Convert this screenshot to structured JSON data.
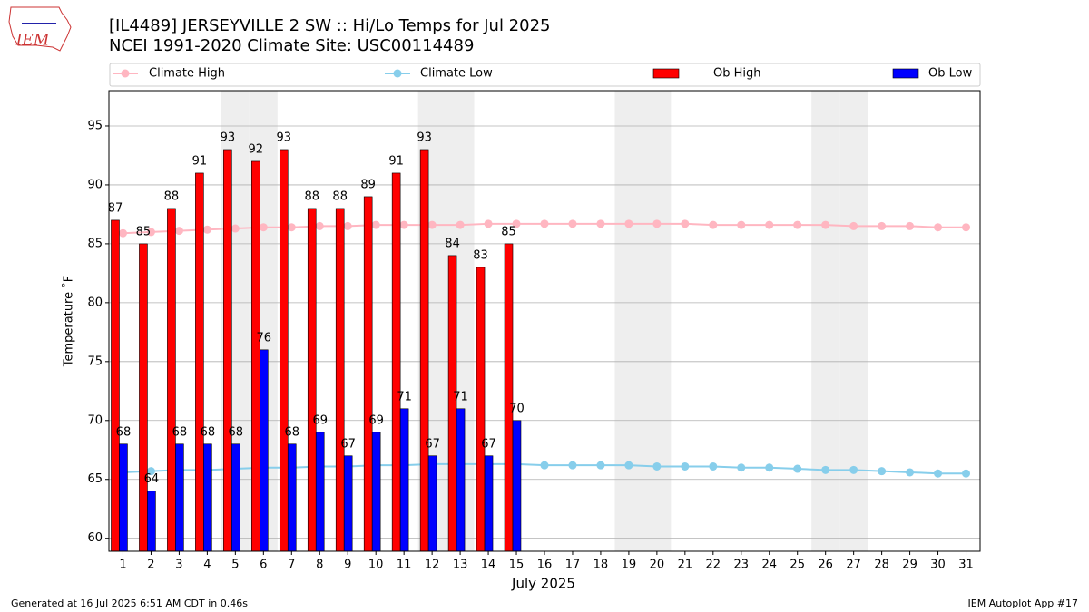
{
  "chart_data": {
    "type": "bar",
    "title": "[IL4489] JERSEYVILLE 2 SW :: Hi/Lo Temps for Jul 2025",
    "subtitle": "NCEI 1991-2020 Climate Site: USC00114489",
    "logo_text": "IEM",
    "x_label": "July 2025",
    "y_label": "Temperature ˚F",
    "footer_left": "Generated at 16 Jul 2025 6:51 AM CDT in 0.46s",
    "footer_right": "IEM Autoplot App #17",
    "x": [
      1,
      2,
      3,
      4,
      5,
      6,
      7,
      8,
      9,
      10,
      11,
      12,
      13,
      14,
      15,
      16,
      17,
      18,
      19,
      20,
      21,
      22,
      23,
      24,
      25,
      26,
      27,
      28,
      29,
      30,
      31
    ],
    "xlim": [
      0.5,
      31.5
    ],
    "xticks": [
      1,
      2,
      3,
      4,
      5,
      6,
      7,
      8,
      9,
      10,
      11,
      12,
      13,
      14,
      15,
      16,
      17,
      18,
      19,
      20,
      21,
      22,
      23,
      24,
      25,
      26,
      27,
      28,
      29,
      30,
      31
    ],
    "ylim": [
      58.9,
      98
    ],
    "yticks": [
      60,
      65,
      70,
      75,
      80,
      85,
      90,
      95
    ],
    "grid": true,
    "shaded_days": [
      5,
      6,
      12,
      13,
      19,
      20,
      26,
      27
    ],
    "series": [
      {
        "name": "Climate High",
        "type": "line",
        "color": "#ffb6c1",
        "values": [
          85.9,
          86.0,
          86.1,
          86.2,
          86.3,
          86.4,
          86.4,
          86.5,
          86.5,
          86.6,
          86.6,
          86.6,
          86.6,
          86.7,
          86.7,
          86.7,
          86.7,
          86.7,
          86.7,
          86.7,
          86.7,
          86.6,
          86.6,
          86.6,
          86.6,
          86.6,
          86.5,
          86.5,
          86.5,
          86.4,
          86.4
        ]
      },
      {
        "name": "Climate Low",
        "type": "line",
        "color": "#87ceeb",
        "values": [
          65.6,
          65.7,
          65.8,
          65.8,
          65.9,
          66.0,
          66.0,
          66.1,
          66.1,
          66.2,
          66.2,
          66.3,
          66.3,
          66.3,
          66.3,
          66.2,
          66.2,
          66.2,
          66.2,
          66.1,
          66.1,
          66.1,
          66.0,
          66.0,
          65.9,
          65.8,
          65.8,
          65.7,
          65.6,
          65.5,
          65.5
        ]
      },
      {
        "name": "Ob High",
        "type": "bar",
        "color": "#ff0000",
        "values": [
          87,
          85,
          88,
          91,
          93,
          92,
          93,
          88,
          88,
          89,
          91,
          93,
          84,
          83,
          85,
          null,
          null,
          null,
          null,
          null,
          null,
          null,
          null,
          null,
          null,
          null,
          null,
          null,
          null,
          null,
          null
        ]
      },
      {
        "name": "Ob Low",
        "type": "bar",
        "color": "#0000ff",
        "values": [
          68,
          64,
          68,
          68,
          68,
          76,
          68,
          69,
          67,
          69,
          71,
          67,
          71,
          67,
          70,
          null,
          null,
          null,
          null,
          null,
          null,
          null,
          null,
          null,
          null,
          null,
          null,
          null,
          null,
          null,
          null
        ]
      }
    ]
  }
}
